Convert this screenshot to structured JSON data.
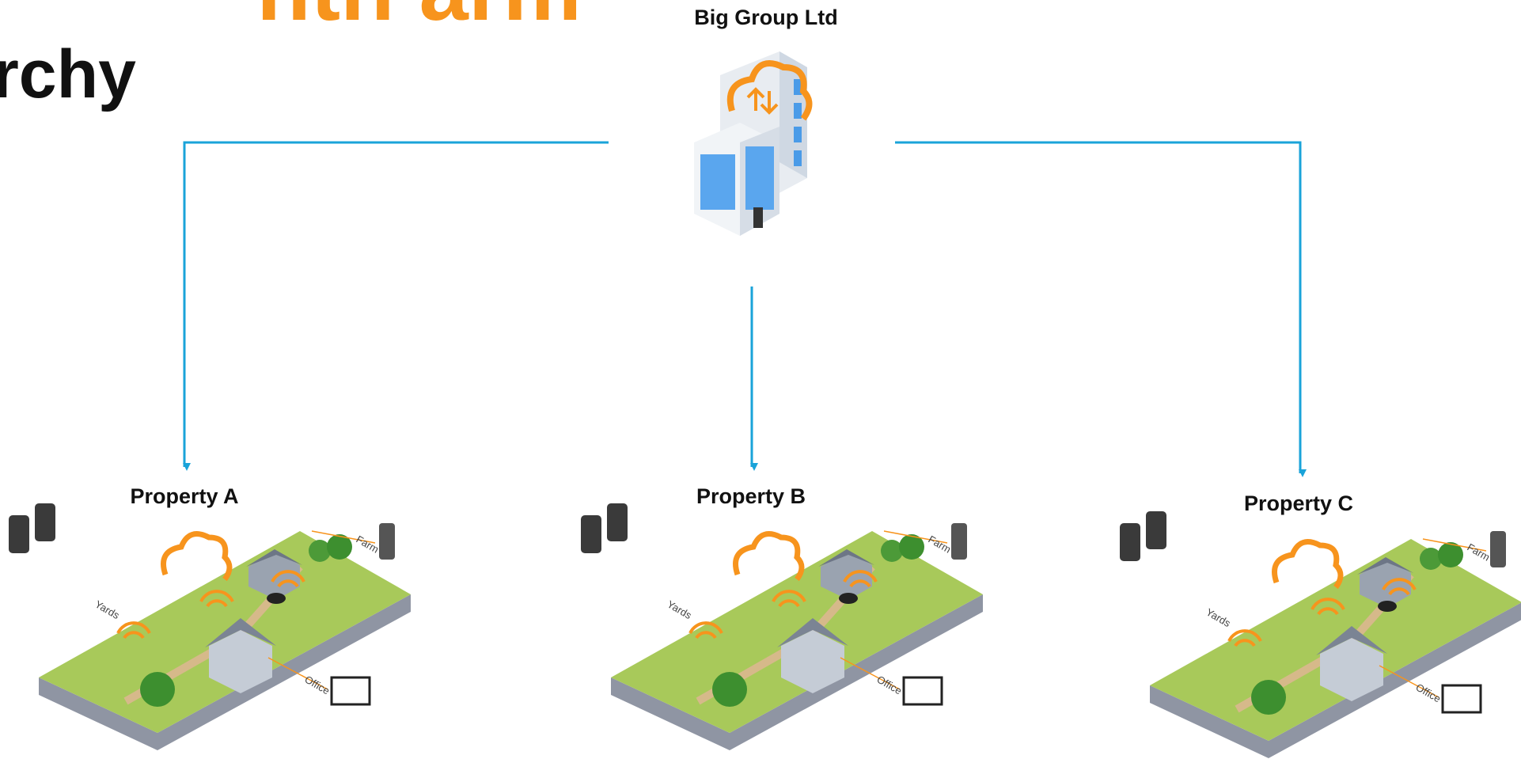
{
  "title": {
    "line1": "nth arm",
    "line2": "rchy"
  },
  "root": {
    "label": "Big Group Ltd"
  },
  "properties": [
    {
      "label": "Property A",
      "farm_labels": {
        "farm": "Farm",
        "yards": "Yards",
        "office": "Office"
      }
    },
    {
      "label": "Property B",
      "farm_labels": {
        "farm": "Farm",
        "yards": "Yards",
        "office": "Office"
      }
    },
    {
      "label": "Property C",
      "farm_labels": {
        "farm": "Farm",
        "yards": "Yards",
        "office": "Office"
      }
    }
  ]
}
